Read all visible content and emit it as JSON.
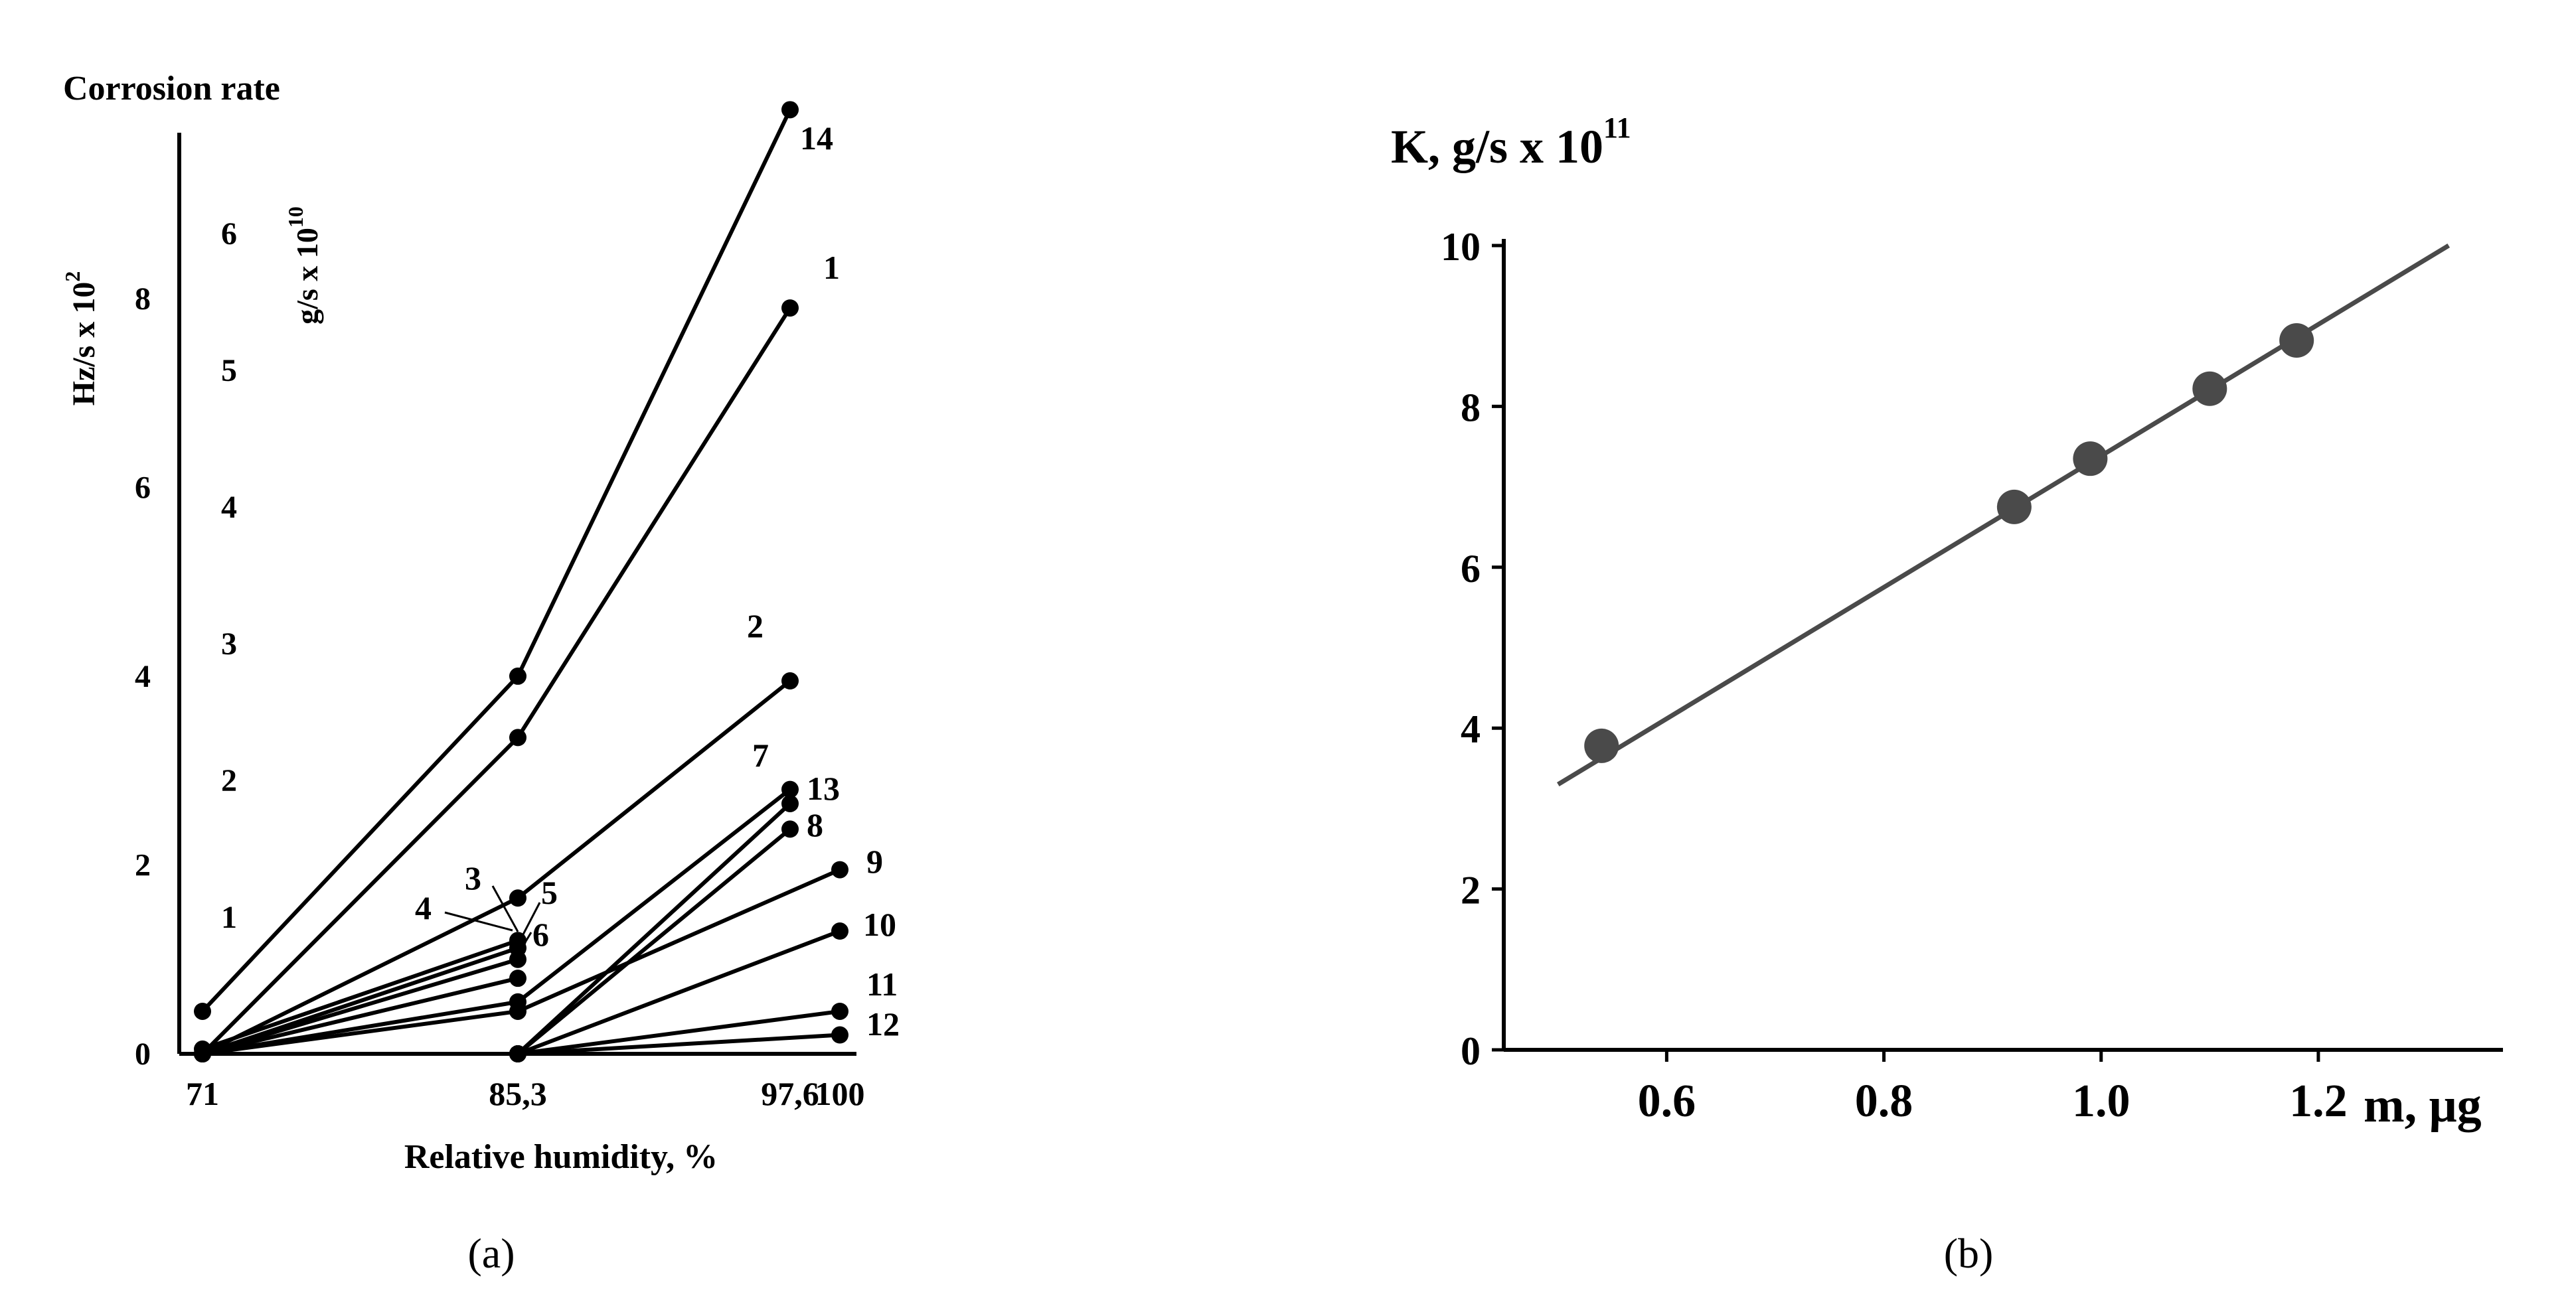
{
  "chart_data": [
    {
      "panel_label": "(a)",
      "type": "line",
      "title": "Corrosion rate",
      "xlabel": "Relative humidity, %",
      "ylabel_left": "Hz/s x 10",
      "ylabel_left_exp": "2",
      "ylabel_right": "g/s x 10",
      "ylabel_right_exp": "10",
      "x_categories": [
        "71",
        "85,3",
        "97,6",
        "100"
      ],
      "x_values": [
        71,
        85.3,
        97.6,
        100
      ],
      "ylim_left": [
        0,
        9.7
      ],
      "yticks_left": [
        "0",
        "2",
        "4",
        "6",
        "8"
      ],
      "yticks_left_values": [
        0,
        2,
        4,
        6,
        8
      ],
      "ylim_right": [
        0,
        6.7
      ],
      "yticks_right": [
        "1",
        "2",
        "3",
        "4",
        "5",
        "6"
      ],
      "yticks_right_values": [
        1,
        2,
        3,
        4,
        5,
        6
      ],
      "series": [
        {
          "name": "14",
          "points": [
            [
              71,
              0.45
            ],
            [
              85.3,
              4.0
            ],
            [
              97.6,
              10.0
            ]
          ]
        },
        {
          "name": "1",
          "points": [
            [
              71,
              0.0
            ],
            [
              85.3,
              3.35
            ],
            [
              97.6,
              7.9
            ]
          ]
        },
        {
          "name": "2",
          "points": [
            [
              71,
              0.0
            ],
            [
              85.3,
              1.65
            ],
            [
              97.6,
              3.95
            ]
          ]
        },
        {
          "name": "7",
          "points": [
            [
              71,
              0.0
            ],
            [
              85.3,
              0.55
            ],
            [
              97.6,
              2.8
            ]
          ]
        },
        {
          "name": "13",
          "points": [
            [
              71,
              0.0
            ],
            [
              85.3,
              0.0
            ],
            [
              97.6,
              2.65
            ]
          ]
        },
        {
          "name": "8",
          "points": [
            [
              71,
              0.0
            ],
            [
              85.3,
              0.0
            ],
            [
              97.6,
              2.38
            ]
          ]
        },
        {
          "name": "9",
          "points": [
            [
              71,
              0.0
            ],
            [
              85.3,
              0.45
            ],
            [
              100,
              1.95
            ]
          ]
        },
        {
          "name": "10",
          "points": [
            [
              71,
              0.0
            ],
            [
              85.3,
              0.0
            ],
            [
              100,
              1.3
            ]
          ]
        },
        {
          "name": "11",
          "points": [
            [
              71,
              0.0
            ],
            [
              85.3,
              0.0
            ],
            [
              100,
              0.45
            ]
          ]
        },
        {
          "name": "12",
          "points": [
            [
              71,
              0.0
            ],
            [
              85.3,
              0.0
            ],
            [
              100,
              0.2
            ]
          ]
        },
        {
          "name": "3",
          "points": [
            [
              71,
              0.05
            ],
            [
              85.3,
              1.2
            ]
          ]
        },
        {
          "name": "4",
          "points": [
            [
              71,
              0.0
            ],
            [
              85.3,
              1.12
            ]
          ]
        },
        {
          "name": "5",
          "points": [
            [
              71,
              0.0
            ],
            [
              85.3,
              1.0
            ]
          ]
        },
        {
          "name": "6",
          "points": [
            [
              71,
              0.0
            ],
            [
              85.3,
              0.8
            ]
          ]
        }
      ]
    },
    {
      "panel_label": "(b)",
      "type": "scatter",
      "ylabel": "K, g/s x 10",
      "ylabel_exp": "11",
      "xlabel": "m, μg",
      "xlim": [
        0.45,
        1.37
      ],
      "ylim": [
        0,
        10
      ],
      "xticks": [
        "0.6",
        "0.8",
        "1.0",
        "1.2"
      ],
      "xticks_values": [
        0.6,
        0.8,
        1.0,
        1.2
      ],
      "yticks": [
        "0",
        "2",
        "4",
        "6",
        "8",
        "10"
      ],
      "yticks_values": [
        0,
        2,
        4,
        6,
        8,
        10
      ],
      "points": [
        [
          0.54,
          3.78
        ],
        [
          0.92,
          6.75
        ],
        [
          0.99,
          7.35
        ],
        [
          1.1,
          8.22
        ],
        [
          1.18,
          8.82
        ]
      ],
      "fit_line": [
        [
          0.5,
          3.3
        ],
        [
          1.32,
          10.0
        ]
      ]
    }
  ]
}
